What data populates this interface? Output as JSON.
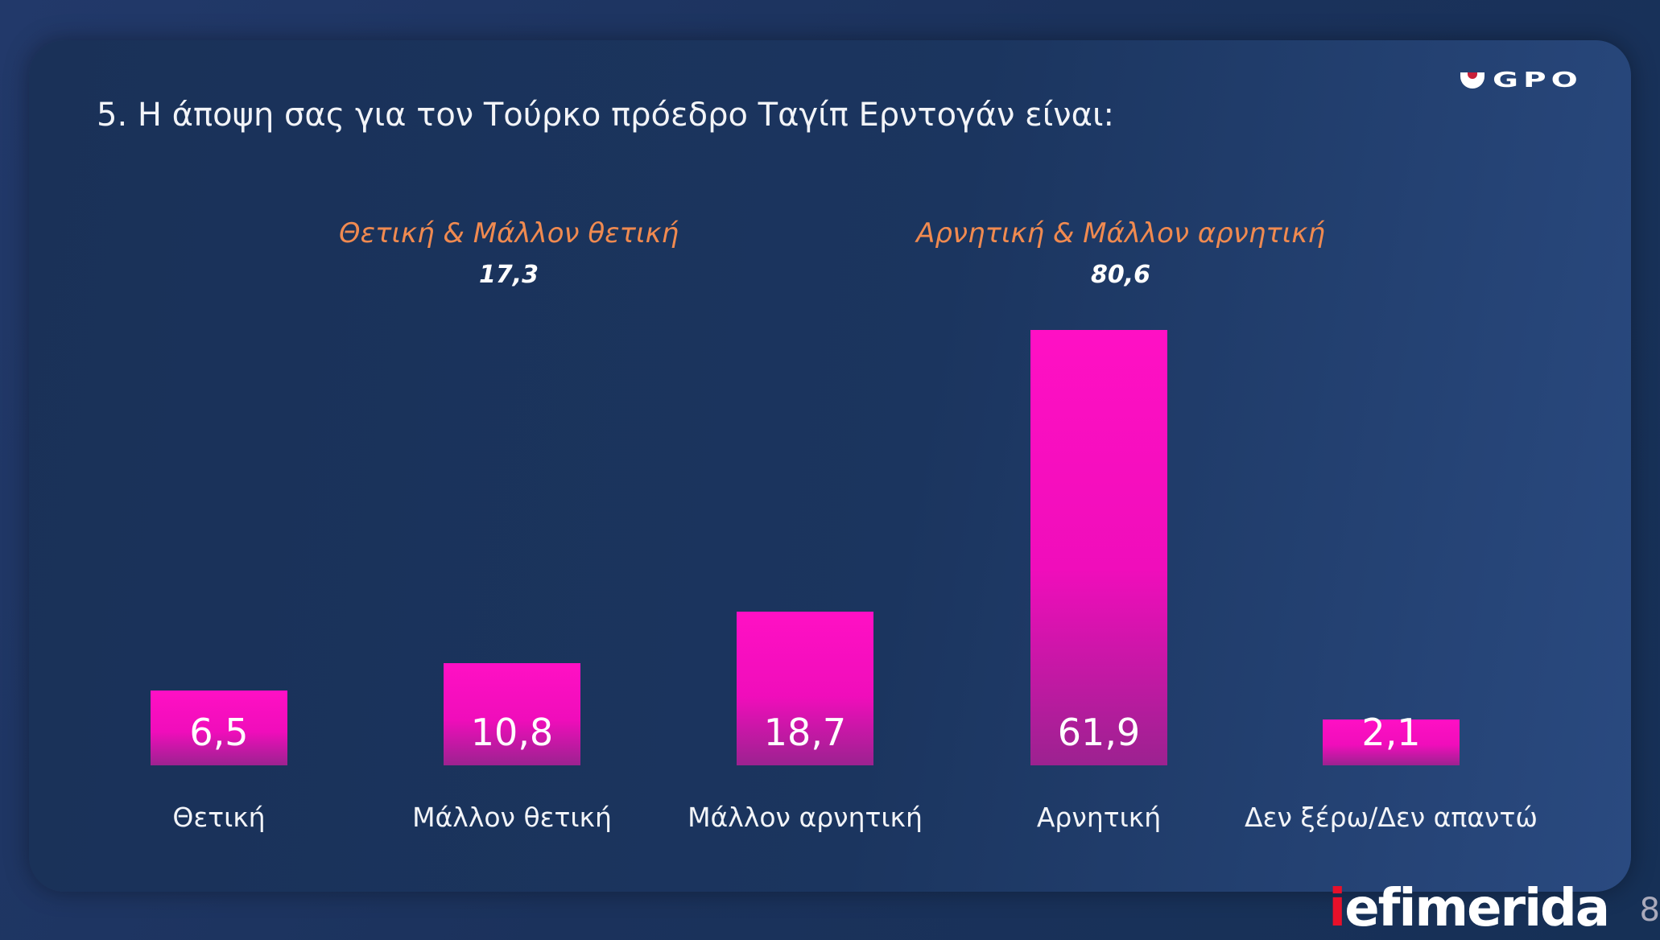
{
  "title": "5. Η άποψη σας για τον Τούρκο πρόεδρο Ταγίπ Ερντογάν είναι:",
  "logo": "GPO",
  "footer_logo": {
    "i": "i",
    "rest": "efimerida"
  },
  "page_number": "8",
  "colors": {
    "bar": "#ff10c4",
    "group_label": "#f08a50",
    "background": "#1b325c"
  },
  "chart_data": {
    "type": "bar",
    "title": "5. Η άποψη σας για τον Τούρκο πρόεδρο Ταγίπ Ερντογάν είναι:",
    "categories": [
      "Θετική",
      "Μάλλον θετική",
      "Μάλλον αρνητική",
      "Αρνητική",
      "Δεν ξέρω/Δεν απαντώ"
    ],
    "values": [
      6.5,
      10.8,
      18.7,
      61.9,
      2.1
    ],
    "value_labels": [
      "6,5",
      "10,8",
      "18,7",
      "61,9",
      "2,1"
    ],
    "groups": [
      {
        "label": "Θετική & Μάλλον θετική",
        "value": "17,3"
      },
      {
        "label": "Αρνητική & Μάλλον αρνητική",
        "value": "80,6"
      }
    ],
    "xlabel": "",
    "ylabel": "",
    "grid": false
  }
}
